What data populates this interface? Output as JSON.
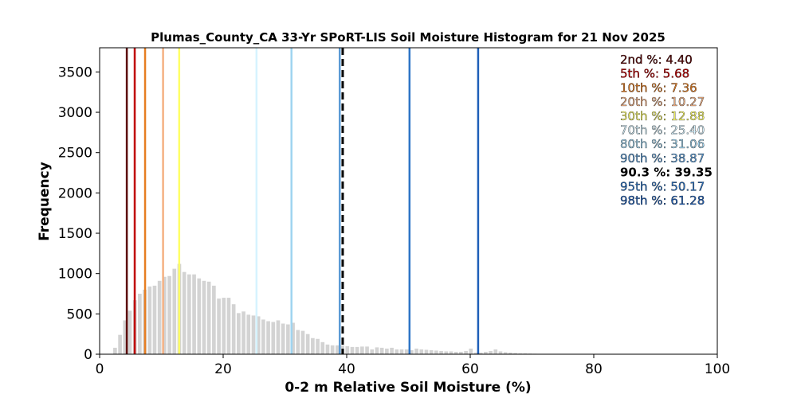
{
  "chart_data": {
    "type": "bar",
    "title": "Plumas_County_CA 33-Yr SPoRT-LIS Soil Moisture Histogram for 21 Nov 2025",
    "xlabel": "0-2 m Relative Soil Moisture (%)",
    "ylabel": "Frequency",
    "xlim": [
      0,
      100
    ],
    "ylim": [
      0,
      3800
    ],
    "xticks": [
      "0",
      "20",
      "40",
      "60",
      "80",
      "100"
    ],
    "yticks": [
      "0",
      "500",
      "1000",
      "1500",
      "2000",
      "2500",
      "3000",
      "3500"
    ],
    "bar_color": "#d3d3d3",
    "bin_width": 0.8,
    "histogram": {
      "x": [
        2.5,
        3.3,
        4.1,
        4.9,
        5.7,
        6.5,
        7.3,
        8.1,
        8.9,
        9.7,
        10.5,
        11.3,
        12.1,
        12.9,
        13.7,
        14.5,
        15.3,
        16.1,
        16.9,
        17.7,
        18.5,
        19.3,
        20.1,
        20.9,
        21.7,
        22.5,
        23.3,
        24.1,
        24.9,
        25.7,
        26.5,
        27.3,
        28.1,
        28.9,
        29.7,
        30.5,
        31.3,
        32.1,
        32.9,
        33.7,
        34.5,
        35.3,
        36.1,
        36.9,
        37.7,
        38.5,
        39.3,
        40.1,
        40.9,
        41.7,
        42.5,
        43.3,
        44.1,
        44.9,
        45.7,
        46.5,
        47.3,
        48.1,
        48.9,
        49.7,
        50.5,
        51.3,
        52.1,
        52.9,
        53.7,
        54.5,
        55.3,
        56.1,
        56.9,
        57.7,
        58.5,
        59.3,
        60.1,
        60.9,
        61.7,
        62.5,
        63.3,
        64.1,
        64.9,
        65.7,
        66.5,
        67.3,
        68.1,
        68.9,
        69.7,
        70.5,
        71.3,
        72.1,
        72.9,
        73.7,
        74.5,
        75.3,
        76.1
      ],
      "values": [
        80,
        240,
        420,
        540,
        670,
        750,
        800,
        840,
        850,
        910,
        960,
        970,
        1060,
        1120,
        1020,
        990,
        990,
        940,
        910,
        900,
        850,
        690,
        700,
        700,
        620,
        510,
        530,
        490,
        480,
        470,
        430,
        410,
        400,
        420,
        380,
        370,
        390,
        300,
        290,
        250,
        200,
        190,
        150,
        120,
        110,
        110,
        110,
        100,
        90,
        90,
        95,
        95,
        60,
        85,
        80,
        70,
        80,
        60,
        60,
        60,
        50,
        70,
        60,
        55,
        50,
        45,
        40,
        35,
        35,
        30,
        30,
        40,
        70,
        20,
        20,
        30,
        40,
        60,
        35,
        25,
        20,
        15,
        10,
        10,
        8,
        6,
        5,
        4,
        3,
        2,
        2,
        2,
        1
      ]
    },
    "percentiles": [
      {
        "label": "2nd %: 4.40",
        "value": 4.4,
        "color": "#5c0a0a"
      },
      {
        "label": "5th %: 5.68",
        "value": 5.68,
        "color": "#c00000"
      },
      {
        "label": "10th %: 7.36",
        "value": 7.36,
        "color": "#e67e22"
      },
      {
        "label": "20th %: 10.27",
        "value": 10.27,
        "color": "#f4b183"
      },
      {
        "label": "30th %: 12.88",
        "value": 12.88,
        "color": "#ffff66"
      },
      {
        "label": "70th %: 25.40",
        "value": 25.4,
        "color": "#d6f3ff"
      },
      {
        "label": "80th %: 31.06",
        "value": 31.06,
        "color": "#9fd4f0"
      },
      {
        "label": "90th %: 38.87",
        "value": 38.87,
        "color": "#5b9bd5"
      },
      {
        "label": "90.3 %: 39.35",
        "value": 39.35,
        "color": "#000000",
        "dashed": true
      },
      {
        "label": "95th %: 50.17",
        "value": 50.17,
        "color": "#2e75c6"
      },
      {
        "label": "98th %: 61.28",
        "value": 61.28,
        "color": "#1f5fb8"
      }
    ]
  }
}
